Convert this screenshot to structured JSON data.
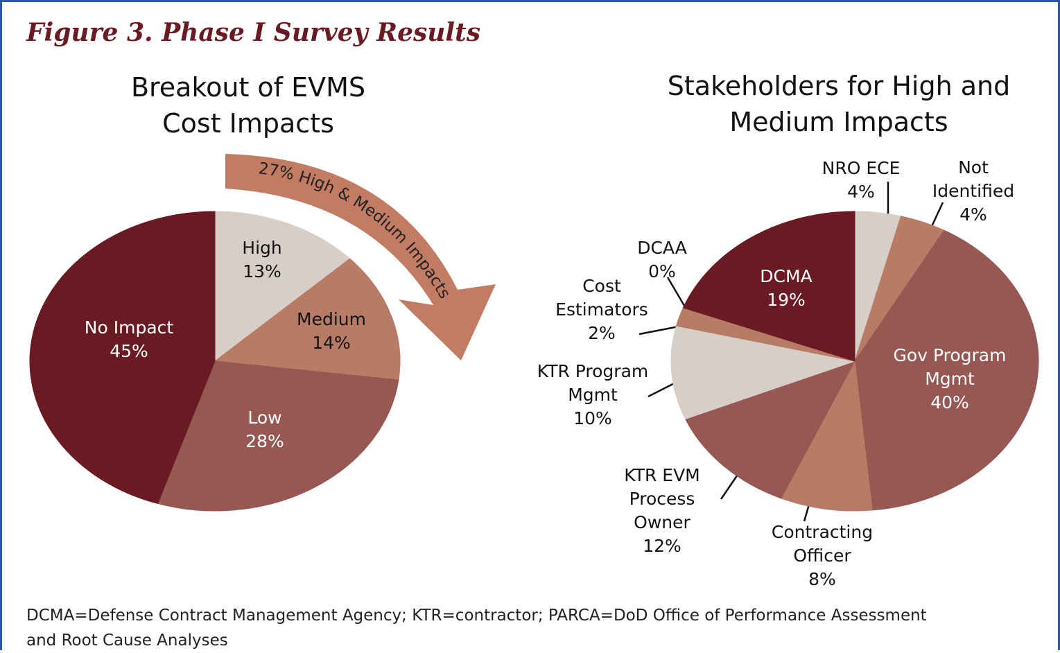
{
  "figure_title": "Figure 3. Phase I Survey Results",
  "footnote": "DCMA=Defense Contract Management Agency; KTR=contractor; PARCA=DoD Office of Performance Assessment and Root Cause Analyses",
  "chart_data": [
    {
      "type": "pie",
      "title": "Breakout of EVMS Cost Impacts",
      "annotation": "27% High & Medium Impacts",
      "categories": [
        "High",
        "Medium",
        "Low",
        "No Impact"
      ],
      "values": [
        13,
        14,
        28,
        45
      ],
      "value_labels": [
        "13%",
        "14%",
        "28%",
        "45%"
      ],
      "colors": [
        "#d8cec8",
        "#b87b66",
        "#975752",
        "#6a1a22"
      ]
    },
    {
      "type": "pie",
      "title": "Stakeholders for High and Medium Impacts",
      "categories": [
        "NRO ECE",
        "Not Identified",
        "Gov Program Mgmt",
        "Contracting Officer",
        "KTR EVM Process Owner",
        "KTR Program Mgmt",
        "Cost Estimators",
        "DCAA",
        "DCMA"
      ],
      "values": [
        4,
        4,
        40,
        8,
        12,
        10,
        2,
        0,
        19
      ],
      "value_labels": [
        "4%",
        "4%",
        "40%",
        "8%",
        "12%",
        "10%",
        "2%",
        "0%",
        "19%"
      ],
      "colors": [
        "#d8cec8",
        "#b87b66",
        "#975752",
        "#b87b66",
        "#975752",
        "#d8cec8",
        "#b87b66",
        "#975752",
        "#6a1a22"
      ]
    }
  ]
}
